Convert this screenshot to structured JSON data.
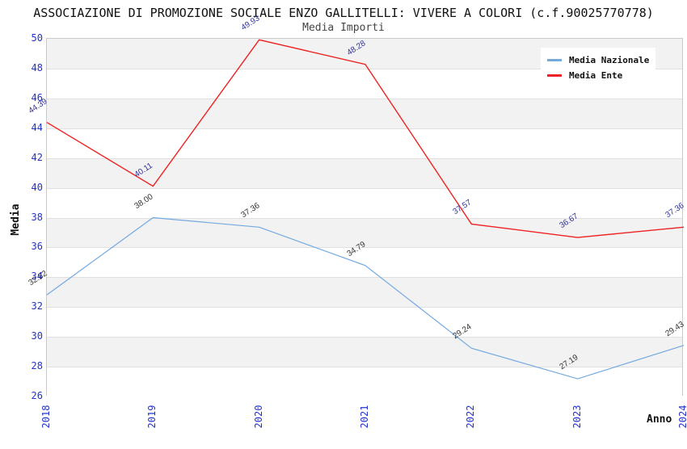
{
  "title": "ASSOCIAZIONE DI PROMOZIONE SOCIALE ENZO GALLITELLI: VIVERE A COLORI (c.f.90025770778)",
  "subtitle": "Media Importi",
  "chart_data": {
    "type": "line",
    "x": [
      "2018",
      "2019",
      "2020",
      "2021",
      "2022",
      "2023",
      "2024"
    ],
    "series": [
      {
        "name": "Media Nazionale",
        "color": "#74a9e0",
        "label_color": "#333333",
        "values": [
          32.82,
          38.0,
          37.36,
          34.79,
          29.24,
          27.19,
          29.43
        ]
      },
      {
        "name": "Media Ente",
        "color": "#ee2222",
        "label_color": "#333399",
        "values": [
          44.39,
          40.11,
          49.93,
          48.28,
          37.57,
          36.67,
          37.36
        ]
      }
    ],
    "title": "Media Importi",
    "xlabel": "Anno",
    "ylabel": "Media",
    "ylim": [
      26,
      50
    ],
    "ytick_step": 2,
    "yticks": [
      50,
      48,
      46,
      44,
      42,
      40,
      38,
      36,
      34,
      32,
      30,
      28,
      26
    ],
    "grid": "horizontal",
    "legend_position": "top-right",
    "band_colors": [
      "#f2f2f2",
      "#ffffff"
    ],
    "tick_label_color": "#2233cc"
  }
}
